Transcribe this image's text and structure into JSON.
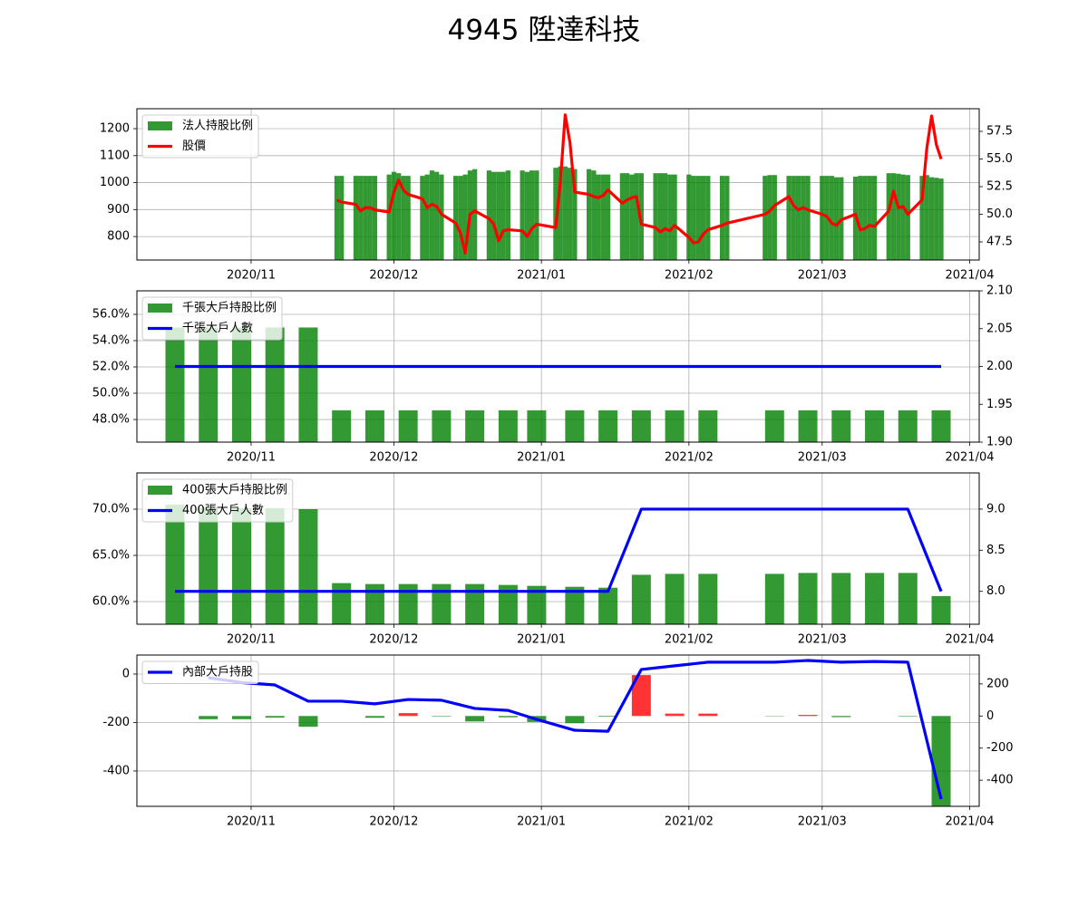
{
  "title": "4945 陞達科技",
  "chart_data": [
    {
      "type": "combo",
      "x": [
        "2020-11-19",
        "2020-11-20",
        "2020-11-23",
        "2020-11-24",
        "2020-11-25",
        "2020-11-26",
        "2020-11-27",
        "2020-11-30",
        "2020-12-01",
        "2020-12-02",
        "2020-12-03",
        "2020-12-04",
        "2020-12-07",
        "2020-12-08",
        "2020-12-09",
        "2020-12-10",
        "2020-12-11",
        "2020-12-14",
        "2020-12-15",
        "2020-12-16",
        "2020-12-17",
        "2020-12-18",
        "2020-12-21",
        "2020-12-22",
        "2020-12-23",
        "2020-12-24",
        "2020-12-25",
        "2020-12-28",
        "2020-12-29",
        "2020-12-30",
        "2020-12-31",
        "2021-01-04",
        "2021-01-05",
        "2021-01-06",
        "2021-01-07",
        "2021-01-08",
        "2021-01-11",
        "2021-01-12",
        "2021-01-13",
        "2021-01-14",
        "2021-01-15",
        "2021-01-18",
        "2021-01-19",
        "2021-01-20",
        "2021-01-21",
        "2021-01-22",
        "2021-01-25",
        "2021-01-26",
        "2021-01-27",
        "2021-01-28",
        "2021-01-29",
        "2021-02-01",
        "2021-02-02",
        "2021-02-03",
        "2021-02-04",
        "2021-02-05",
        "2021-02-08",
        "2021-02-09",
        "2021-02-17",
        "2021-02-18",
        "2021-02-19",
        "2021-02-22",
        "2021-02-23",
        "2021-02-24",
        "2021-02-25",
        "2021-02-26",
        "2021-03-01",
        "2021-03-02",
        "2021-03-03",
        "2021-03-04",
        "2021-03-05",
        "2021-03-08",
        "2021-03-09",
        "2021-03-10",
        "2021-03-11",
        "2021-03-12",
        "2021-03-15",
        "2021-03-16",
        "2021-03-17",
        "2021-03-18",
        "2021-03-19",
        "2021-03-22",
        "2021-03-23",
        "2021-03-24",
        "2021-03-25",
        "2021-03-26"
      ],
      "xlim": [
        "2020-10-08",
        "2021-04-03"
      ],
      "xticks": [
        {
          "value": "2020-11-01",
          "label": "2020/11"
        },
        {
          "value": "2020-12-01",
          "label": "2020/12"
        },
        {
          "value": "2021-01-01",
          "label": "2021/01"
        },
        {
          "value": "2021-02-01",
          "label": "2021/02"
        },
        {
          "value": "2021-03-01",
          "label": "2021/03"
        },
        {
          "value": "2021-04-01",
          "label": "2021/04"
        }
      ],
      "ylim": [
        713,
        1274
      ],
      "yticks": [
        800,
        900,
        1000,
        1100,
        1200
      ],
      "y2lim": [
        45.86,
        59.55
      ],
      "y2ticks": [
        47.5,
        {
          "value": 50,
          "label": "50.0"
        },
        52.5,
        {
          "value": 55,
          "label": "55.0"
        },
        57.5
      ],
      "grid": true,
      "legend": "upper left",
      "series": [
        {
          "name": "法人持股比例",
          "type": "bar",
          "color": "green",
          "alpha": 0.8,
          "values": [
            1025,
            1025,
            1025,
            1025,
            1025,
            1025,
            1025,
            1030,
            1040,
            1035,
            1025,
            1025,
            1025,
            1030,
            1045,
            1040,
            1030,
            1025,
            1025,
            1030,
            1045,
            1050,
            1045,
            1040,
            1040,
            1040,
            1045,
            1045,
            1040,
            1045,
            1045,
            1055,
            1060,
            1060,
            1055,
            1050,
            1050,
            1045,
            1030,
            1030,
            1030,
            1035,
            1035,
            1030,
            1035,
            1035,
            1035,
            1035,
            1035,
            1030,
            1030,
            1030,
            1025,
            1025,
            1025,
            1025,
            1025,
            1025,
            1025,
            1028,
            1028,
            1025,
            1025,
            1025,
            1025,
            1025,
            1025,
            1025,
            1025,
            1020,
            1020,
            1022,
            1025,
            1025,
            1025,
            1025,
            1035,
            1035,
            1033,
            1030,
            1028,
            1025,
            1028,
            1020,
            1018,
            1015
          ]
        },
        {
          "name": "股價",
          "type": "line",
          "color": "red",
          "axis": "y2",
          "values": [
            51.3,
            51.1,
            50.9,
            50.3,
            50.6,
            50.6,
            50.4,
            50.2,
            52.0,
            53.1,
            52.2,
            51.8,
            51.4,
            50.6,
            50.9,
            50.7,
            50.0,
            49.2,
            48.3,
            46.5,
            50.0,
            50.3,
            49.6,
            49.1,
            47.6,
            48.5,
            48.6,
            48.5,
            48.0,
            48.7,
            49.1,
            48.8,
            53.0,
            59.0,
            56.5,
            52.0,
            51.8,
            51.6,
            51.5,
            51.7,
            52.2,
            51.0,
            51.3,
            51.5,
            51.6,
            49.1,
            48.8,
            48.4,
            48.7,
            48.5,
            49.0,
            47.9,
            47.4,
            47.5,
            48.2,
            48.6,
            49.0,
            49.2,
            50.0,
            50.3,
            50.8,
            51.6,
            50.8,
            50.4,
            50.6,
            50.4,
            50.0,
            49.8,
            49.2,
            49.0,
            49.5,
            50.0,
            48.6,
            48.7,
            49.0,
            48.9,
            50.3,
            52.1,
            50.6,
            50.7,
            50.0,
            51.3,
            56.0,
            58.9,
            56.3,
            55.0
          ]
        }
      ]
    },
    {
      "type": "combo",
      "x": [
        "2020-10-16",
        "2020-10-23",
        "2020-10-30",
        "2020-11-06",
        "2020-11-13",
        "2020-11-20",
        "2020-11-27",
        "2020-12-04",
        "2020-12-11",
        "2020-12-18",
        "2020-12-25",
        "2020-12-31",
        "2021-01-08",
        "2021-01-15",
        "2021-01-22",
        "2021-01-29",
        "2021-02-05",
        "2021-02-19",
        "2021-02-26",
        "2021-03-05",
        "2021-03-12",
        "2021-03-19",
        "2021-03-26"
      ],
      "xlim": [
        "2020-10-08",
        "2021-04-03"
      ],
      "xticks": [
        {
          "value": "2020-11-01",
          "label": "2020/11"
        },
        {
          "value": "2020-12-01",
          "label": "2020/12"
        },
        {
          "value": "2021-01-01",
          "label": "2021/01"
        },
        {
          "value": "2021-02-01",
          "label": "2021/02"
        },
        {
          "value": "2021-03-01",
          "label": "2021/03"
        },
        {
          "value": "2021-04-01",
          "label": "2021/04"
        }
      ],
      "ylim": [
        46.28,
        57.79
      ],
      "yticks": [
        {
          "value": 48,
          "label": "48.0%"
        },
        {
          "value": 50,
          "label": "50.0%"
        },
        {
          "value": 52,
          "label": "52.0%"
        },
        {
          "value": 54,
          "label": "54.0%"
        },
        {
          "value": 56,
          "label": "56.0%"
        }
      ],
      "y2lim": [
        1.9,
        2.1
      ],
      "y2ticks": [
        {
          "value": 1.9,
          "label": "1.90"
        },
        1.95,
        {
          "value": 2,
          "label": "2.00"
        },
        2.05,
        {
          "value": 2.1,
          "label": "2.10"
        }
      ],
      "grid": true,
      "legend": "upper left",
      "series": [
        {
          "name": "千張大戶持股比例",
          "type": "bar",
          "color": "green",
          "alpha": 0.8,
          "values": [
            55.0,
            55.0,
            55.0,
            55.0,
            55.0,
            48.7,
            48.7,
            48.7,
            48.7,
            48.7,
            48.7,
            48.7,
            48.7,
            48.7,
            48.7,
            48.7,
            48.7,
            48.7,
            48.7,
            48.7,
            48.7,
            48.7,
            48.7
          ]
        },
        {
          "name": "千張大戶人數",
          "type": "line",
          "color": "blue",
          "axis": "y2",
          "values": [
            2,
            2,
            2,
            2,
            2,
            2,
            2,
            2,
            2,
            2,
            2,
            2,
            2,
            2,
            2,
            2,
            2,
            2,
            2,
            2,
            2,
            2,
            2
          ]
        }
      ]
    },
    {
      "type": "combo",
      "x": [
        "2020-10-16",
        "2020-10-23",
        "2020-10-30",
        "2020-11-06",
        "2020-11-13",
        "2020-11-20",
        "2020-11-27",
        "2020-12-04",
        "2020-12-11",
        "2020-12-18",
        "2020-12-25",
        "2020-12-31",
        "2021-01-08",
        "2021-01-15",
        "2021-01-22",
        "2021-01-29",
        "2021-02-05",
        "2021-02-19",
        "2021-02-26",
        "2021-03-05",
        "2021-03-12",
        "2021-03-19",
        "2021-03-26"
      ],
      "xlim": [
        "2020-10-08",
        "2021-04-03"
      ],
      "xticks": [
        {
          "value": "2020-11-01",
          "label": "2020/11"
        },
        {
          "value": "2020-12-01",
          "label": "2020/12"
        },
        {
          "value": "2021-01-01",
          "label": "2021/01"
        },
        {
          "value": "2021-02-01",
          "label": "2021/02"
        },
        {
          "value": "2021-03-01",
          "label": "2021/03"
        },
        {
          "value": "2021-04-01",
          "label": "2021/04"
        }
      ],
      "ylim": [
        57.55,
        73.92
      ],
      "yticks": [
        {
          "value": 60,
          "label": "60.0%"
        },
        {
          "value": 65,
          "label": "65.0%"
        },
        {
          "value": 70,
          "label": "70.0%"
        }
      ],
      "y2lim": [
        7.6,
        9.44
      ],
      "y2ticks": [
        {
          "value": 8,
          "label": "8.0"
        },
        8.5,
        {
          "value": 9,
          "label": "9.0"
        }
      ],
      "grid": true,
      "legend": "upper left",
      "series": [
        {
          "name": "400張大戶持股比例",
          "type": "bar",
          "color": "green",
          "alpha": 0.8,
          "values": [
            70.5,
            70.2,
            70.1,
            70.1,
            70.0,
            62.0,
            61.9,
            61.9,
            61.9,
            61.9,
            61.8,
            61.7,
            61.6,
            61.5,
            62.9,
            63.0,
            63.0,
            63.0,
            63.1,
            63.1,
            63.1,
            63.1,
            60.6
          ]
        },
        {
          "name": "400張大戶人數",
          "type": "line",
          "color": "blue",
          "axis": "y2",
          "values": [
            8,
            8,
            8,
            8,
            8,
            8,
            8,
            8,
            8,
            8,
            8,
            8,
            8,
            8,
            9,
            9,
            9,
            9,
            9,
            9,
            9,
            9,
            8
          ]
        }
      ]
    },
    {
      "type": "combo",
      "x": [
        "2020-10-23",
        "2020-10-30",
        "2020-11-06",
        "2020-11-13",
        "2020-11-20",
        "2020-11-27",
        "2020-12-04",
        "2020-12-11",
        "2020-12-18",
        "2020-12-25",
        "2020-12-31",
        "2021-01-08",
        "2021-01-15",
        "2021-01-22",
        "2021-01-29",
        "2021-02-05",
        "2021-02-19",
        "2021-02-26",
        "2021-03-05",
        "2021-03-12",
        "2021-03-19",
        "2021-03-26"
      ],
      "xlim": [
        "2020-10-08",
        "2021-04-03"
      ],
      "xticks": [
        {
          "value": "2020-11-01",
          "label": "2020/11"
        },
        {
          "value": "2020-12-01",
          "label": "2020/12"
        },
        {
          "value": "2021-01-01",
          "label": "2021/01"
        },
        {
          "value": "2021-02-01",
          "label": "2021/02"
        },
        {
          "value": "2021-03-01",
          "label": "2021/03"
        },
        {
          "value": "2021-04-01",
          "label": "2021/04"
        }
      ],
      "ylim": [
        -546,
        78.5
      ],
      "yticks": [
        -400,
        -200,
        0
      ],
      "y2lim": [
        -563,
        380
      ],
      "y2ticks": [
        -400,
        -200,
        0,
        200
      ],
      "grid": true,
      "legend": "upper left",
      "series": [
        {
          "type": "bar",
          "axis": "y2",
          "color": "green",
          "positive_color": "red",
          "alpha": 0.8,
          "values": [
            -20,
            -20,
            -10,
            -67,
            0,
            -11,
            18,
            -3,
            -34,
            -8,
            -37,
            -45,
            -4,
            255,
            15,
            15,
            -2,
            7,
            -7,
            0,
            -3,
            -565
          ]
        },
        {
          "name": "內部大戶持股",
          "type": "line",
          "color": "blue",
          "values": [
            -15,
            -35,
            -45,
            -112,
            -112,
            -123,
            -105,
            -108,
            -142,
            -150,
            -187,
            -232,
            -236,
            19,
            34,
            49,
            49,
            56,
            49,
            52,
            49,
            -516
          ]
        }
      ]
    }
  ]
}
